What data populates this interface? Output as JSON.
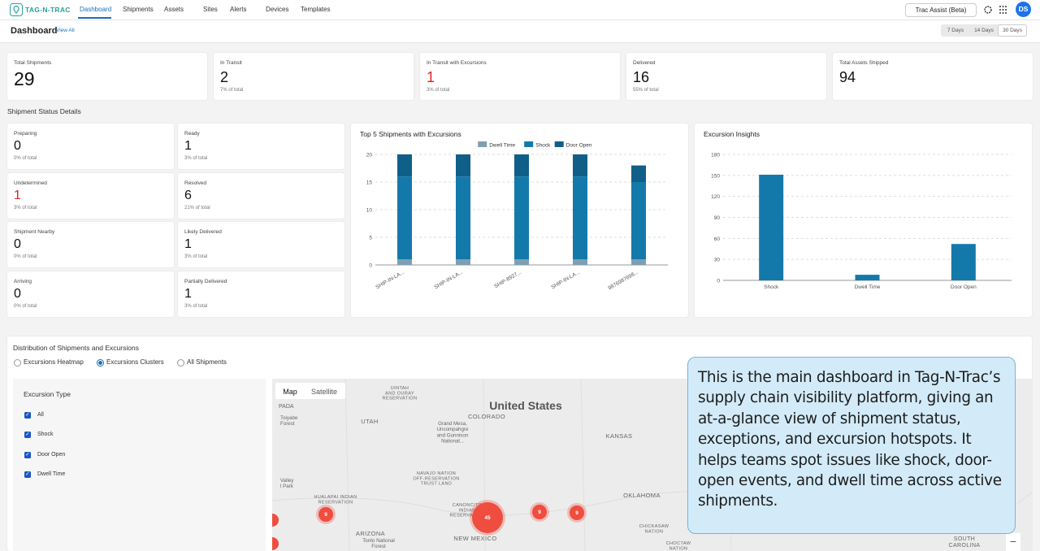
{
  "nav": {
    "logo": "TAG-N-TRAC",
    "items": [
      "Dashboard",
      "Shipments",
      "Assets",
      "Sites",
      "Alerts",
      "Devices",
      "Templates"
    ],
    "active": 0,
    "assist": "Trac Assist (Beta)",
    "avatar": "DS"
  },
  "header": {
    "title": "Dashboard",
    "link": "View All",
    "ranges": [
      "7 Days",
      "14 Days",
      "30 Days"
    ],
    "selected_range": 2
  },
  "summary": [
    {
      "label": "Total Shipments",
      "value": 29
    },
    {
      "label": "In Transit",
      "value": 2,
      "note": "7% of total"
    },
    {
      "label": "In Transit with Excursions",
      "value": 1,
      "note": "3% of total",
      "highlight": true
    },
    {
      "label": "Delivered",
      "value": 16,
      "note": "55% of total"
    },
    {
      "label": "Total Assets Shipped",
      "value": 94
    }
  ],
  "status_title": "Shipment Status Details",
  "status": [
    {
      "label": "Preparing",
      "value": 0,
      "note": "0% of total"
    },
    {
      "label": "Ready",
      "value": 1,
      "note": "3% of total"
    },
    {
      "label": "Undetermined",
      "value": 1,
      "note": "3% of total",
      "highlight": true
    },
    {
      "label": "Resolved",
      "value": 6,
      "note": "21% of total"
    },
    {
      "label": "Shipment Nearby",
      "value": 0,
      "note": "0% of total"
    },
    {
      "label": "Likely Delivered",
      "value": 1,
      "note": "3% of total"
    },
    {
      "label": "Arriving",
      "value": 0,
      "note": "0% of total"
    },
    {
      "label": "Partially Delivered",
      "value": 1,
      "note": "3% of total"
    }
  ],
  "chart_data": [
    {
      "type": "bar",
      "stacked": true,
      "title": "Top 5 Shipments with Excursions",
      "categories": [
        "SHIP-IN-LA...",
        "SHIP-IN-LA...",
        "SHIP-8927...",
        "SHIP-IN-LA...",
        "9876987698..."
      ],
      "series": [
        {
          "name": "Dwell Time",
          "color": "#7e9fb2",
          "values": [
            1,
            1,
            1,
            1,
            1
          ]
        },
        {
          "name": "Shock",
          "color": "#1379aa",
          "values": [
            15,
            15,
            15,
            15,
            14
          ]
        },
        {
          "name": "Door Open",
          "color": "#0f5f88",
          "values": [
            4,
            4,
            4,
            4,
            3
          ]
        }
      ],
      "ylim": [
        0,
        20
      ],
      "yticks": [
        0,
        5,
        10,
        15,
        20
      ],
      "grid": true
    },
    {
      "type": "bar",
      "title": "Excursion Insights",
      "categories": [
        "Shock",
        "Dwell Time",
        "Door Open"
      ],
      "values": [
        151,
        8,
        52
      ],
      "color": "#1379aa",
      "ylim": [
        0,
        180
      ],
      "yticks": [
        0,
        30,
        60,
        90,
        120,
        150,
        180
      ],
      "grid": true
    }
  ],
  "map": {
    "title": "Distribution of Shipments and Excursions",
    "options": [
      "Excursions Heatmap",
      "Excursions Clusters",
      "All Shipments"
    ],
    "selected": 1,
    "filter_title": "Excursion Type",
    "filters": [
      "All",
      "Shock",
      "Door Open",
      "Dwell Time"
    ],
    "tabs": [
      "Map",
      "Satellite"
    ],
    "labels": [
      [
        "United States"
      ],
      [
        "UTAH"
      ],
      [
        "COLORADO"
      ],
      [
        "KANSAS"
      ],
      [
        "OKLAHOMA"
      ],
      [
        "ARIZONA"
      ],
      [
        "NEW MEXICO"
      ],
      [
        "UINTAH",
        "AND OURAY",
        "RESERVATION"
      ],
      [
        "Grand Mesa,",
        "Uncompahgre",
        "and Gunnison",
        "National..."
      ],
      [
        "NAVAJO NATION",
        "OFF-RESERVATION",
        "TRUST LAND"
      ],
      [
        "HUALAPAI INDIAN",
        "RESERVATION"
      ],
      [
        "CANONCITO",
        "INDIAN",
        "RESERVATION"
      ],
      [
        "Tonto National",
        "Forest"
      ],
      [
        "CHICKASAW",
        "NATION"
      ],
      [
        "CHOCTAW",
        "NATION"
      ],
      [
        "SOUTH",
        "CAROLINA"
      ],
      [
        "PADA"
      ],
      [
        "Toiyabe",
        "Forest"
      ],
      [
        "Valley",
        "l Park"
      ]
    ],
    "clusters": [
      9,
      45,
      9,
      9
    ]
  },
  "callout": "This is the main dashboard in Tag-N-Trac’s supply chain visibility platform, giving an at-a-glance view of shipment status, exceptions, and excursion hotspots. It helps teams spot issues like shock, door-open events, and dwell time across active shipments."
}
